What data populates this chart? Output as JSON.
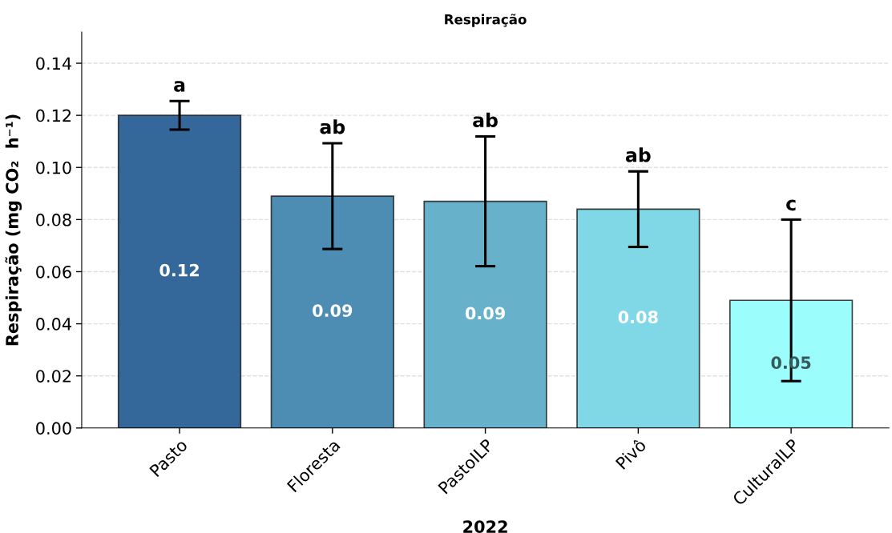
{
  "chart_data": {
    "type": "bar",
    "title": "Respiração",
    "xlabel": "2022",
    "ylabel": "Respiração (mg CO₂  h⁻¹)",
    "categories": [
      "Pasto",
      "Floresta",
      "PastoILP",
      "Pivô",
      "CulturalLP"
    ],
    "values": [
      0.12,
      0.089,
      0.087,
      0.084,
      0.049
    ],
    "errors": [
      0.0055,
      0.0203,
      0.0249,
      0.0145,
      0.031
    ],
    "value_labels": [
      "0.12",
      "0.09",
      "0.09",
      "0.08",
      "0.05"
    ],
    "colors": [
      "#34679a",
      "#4d8db4",
      "#68b1cb",
      "#80d8e6",
      "#9cfdfd"
    ],
    "annotations": [
      {
        "text": "a",
        "x": "Pasto",
        "y": 0.1255
      },
      {
        "text": "ab",
        "x": "Floresta",
        "y": 0.1093
      },
      {
        "text": "ab",
        "x": "PastoILP",
        "y": 0.1119
      },
      {
        "text": "ab",
        "x": "Pivô",
        "y": 0.0985
      },
      {
        "text": "c",
        "x": "CulturalLP",
        "y": 0.0799
      }
    ],
    "ylim": [
      0,
      0.152
    ],
    "yticks": [
      {
        "value": 0,
        "label": "0.00"
      },
      0.02,
      0.04,
      0.06,
      0.08,
      {
        "value": 0.1,
        "label": "0.10"
      },
      0.12,
      0.14
    ],
    "grid": "y",
    "legend": false
  }
}
